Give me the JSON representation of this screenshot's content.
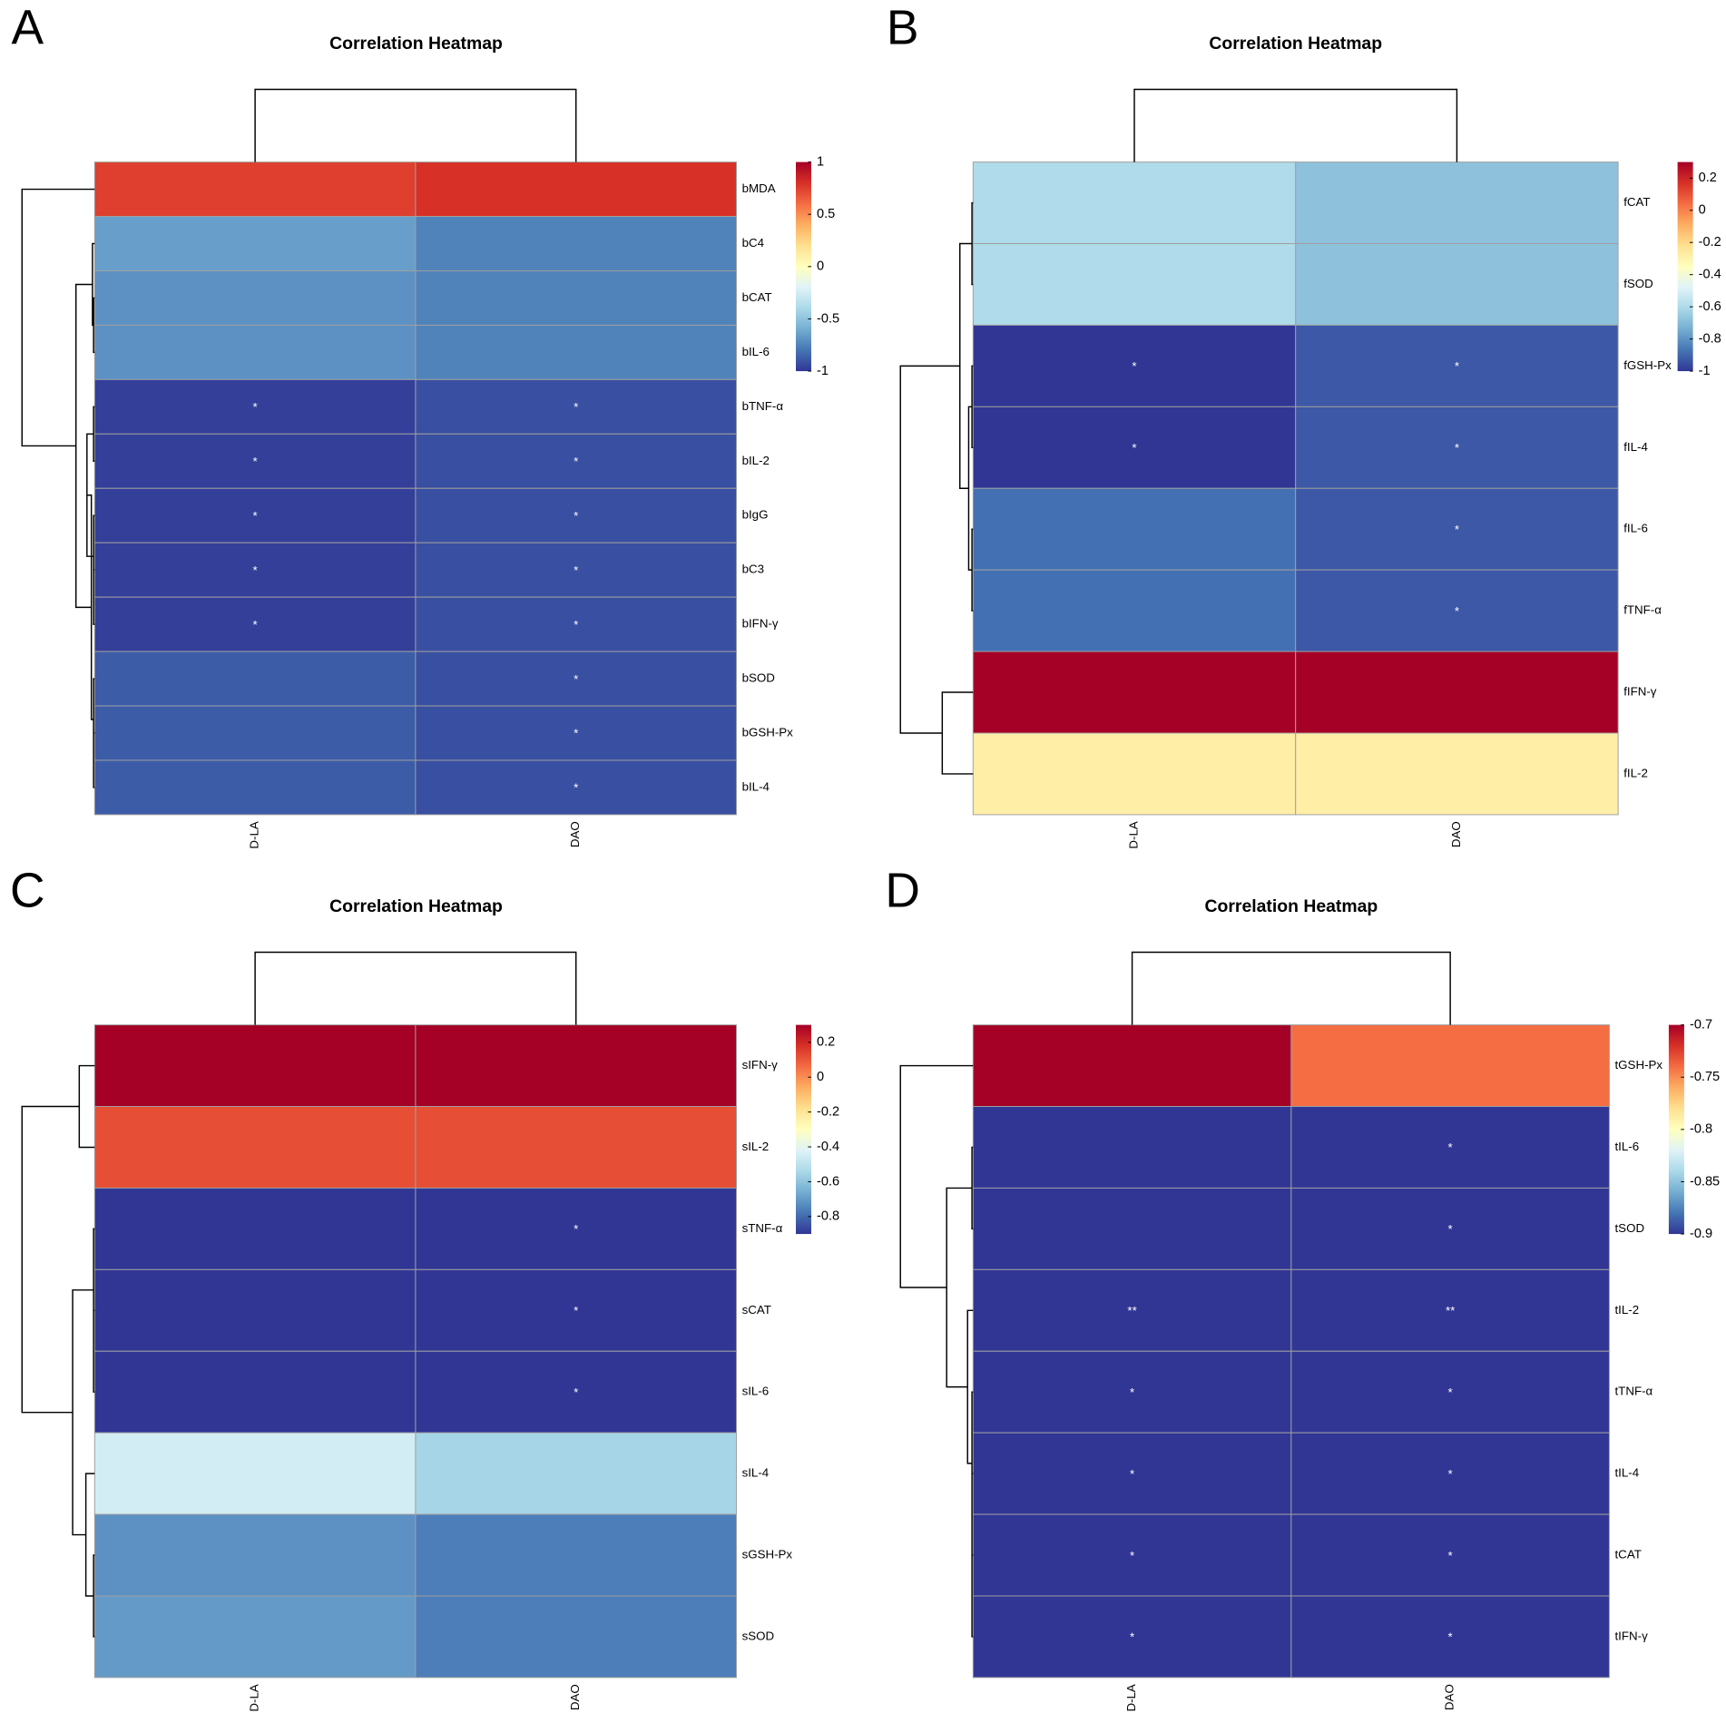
{
  "chart_data": [
    {
      "type": "heatmap",
      "panel": "A",
      "title": "Correlation Heatmap",
      "columns": [
        "D-LA",
        "DAO"
      ],
      "rows": [
        "bMDA",
        "bC4",
        "bCAT",
        "bIL-6",
        "bTNF-α",
        "bIL-2",
        "bIgG",
        "bC3",
        "bIFN-γ",
        "bSOD",
        "bGSH-Px",
        "bIL-4"
      ],
      "values": [
        [
          0.75,
          0.8
        ],
        [
          -0.65,
          -0.75
        ],
        [
          -0.7,
          -0.75
        ],
        [
          -0.7,
          -0.75
        ],
        [
          -0.97,
          -0.92
        ],
        [
          -0.97,
          -0.92
        ],
        [
          -0.97,
          -0.92
        ],
        [
          -0.97,
          -0.92
        ],
        [
          -0.97,
          -0.92
        ],
        [
          -0.88,
          -0.92
        ],
        [
          -0.88,
          -0.92
        ],
        [
          -0.88,
          -0.92
        ]
      ],
      "stars": [
        [
          null,
          null
        ],
        [
          null,
          null
        ],
        [
          null,
          null
        ],
        [
          null,
          null
        ],
        [
          "*",
          "*"
        ],
        [
          "*",
          "*"
        ],
        [
          "*",
          "*"
        ],
        [
          "*",
          "*"
        ],
        [
          "*",
          "*"
        ],
        [
          null,
          "*"
        ],
        [
          null,
          "*"
        ],
        [
          null,
          "*"
        ]
      ],
      "zlim": [
        -1,
        1
      ],
      "zticks": [
        1,
        0.5,
        0,
        -0.5,
        -1
      ],
      "colors": [
        "#313695",
        "#4575b4",
        "#74add1",
        "#abd9e9",
        "#e0f3f8",
        "#ffffbf",
        "#fee090",
        "#fdae61",
        "#f46d43",
        "#d73027",
        "#a50026"
      ]
    },
    {
      "type": "heatmap",
      "panel": "B",
      "title": "Correlation Heatmap",
      "columns": [
        "D-LA",
        "DAO"
      ],
      "rows": [
        "fCAT",
        "fSOD",
        "fGSH-Px",
        "fIL-4",
        "fIL-6",
        "fTNF-α",
        "fIFN-γ",
        "fIL-2"
      ],
      "values": [
        [
          -0.6,
          -0.68
        ],
        [
          -0.6,
          -0.68
        ],
        [
          -1,
          -0.93
        ],
        [
          -1,
          -0.93
        ],
        [
          -0.88,
          -0.93
        ],
        [
          -0.88,
          -0.93
        ],
        [
          0.3,
          0.3
        ],
        [
          -0.28,
          -0.28
        ]
      ],
      "stars": [
        [
          null,
          null
        ],
        [
          null,
          null
        ],
        [
          "*",
          "*"
        ],
        [
          "*",
          "*"
        ],
        [
          null,
          "*"
        ],
        [
          null,
          "*"
        ],
        [
          null,
          null
        ],
        [
          null,
          null
        ]
      ],
      "zlim": [
        -1,
        0.3
      ],
      "zticks": [
        0.2,
        0,
        -0.2,
        -0.4,
        -0.6,
        -0.8,
        -1
      ],
      "colors": [
        "#313695",
        "#4575b4",
        "#74add1",
        "#abd9e9",
        "#e0f3f8",
        "#ffffbf",
        "#fee090",
        "#fdae61",
        "#f46d43",
        "#d73027",
        "#a50026"
      ]
    },
    {
      "type": "heatmap",
      "panel": "C",
      "title": "Correlation Heatmap",
      "columns": [
        "D-LA",
        "DAO"
      ],
      "rows": [
        "sIFN-γ",
        "sIL-2",
        "sTNF-α",
        "sCAT",
        "sIL-6",
        "sIL-4",
        "sGSH-Px",
        "sSOD"
      ],
      "values": [
        [
          0.3,
          0.3
        ],
        [
          0.12,
          0.12
        ],
        [
          -0.9,
          -0.9
        ],
        [
          -0.9,
          -0.9
        ],
        [
          -0.9,
          -0.9
        ],
        [
          -0.45,
          -0.55
        ],
        [
          -0.72,
          -0.76
        ],
        [
          -0.7,
          -0.76
        ]
      ],
      "stars": [
        [
          null,
          null
        ],
        [
          null,
          null
        ],
        [
          null,
          "*"
        ],
        [
          null,
          "*"
        ],
        [
          null,
          "*"
        ],
        [
          null,
          null
        ],
        [
          null,
          null
        ],
        [
          null,
          null
        ]
      ],
      "zlim": [
        -0.9,
        0.3
      ],
      "zticks": [
        0.2,
        0,
        -0.2,
        -0.4,
        -0.6,
        -0.8
      ],
      "colors": [
        "#313695",
        "#4575b4",
        "#74add1",
        "#abd9e9",
        "#e0f3f8",
        "#ffffbf",
        "#fee090",
        "#fdae61",
        "#f46d43",
        "#d73027",
        "#a50026"
      ]
    },
    {
      "type": "heatmap",
      "panel": "D",
      "title": "Correlation Heatmap",
      "columns": [
        "D-LA",
        "DAO"
      ],
      "rows": [
        "tGSH-Px",
        "tIL-6",
        "tSOD",
        "tIL-2",
        "tTNF-α",
        "tIL-4",
        "tCAT",
        "tIFN-γ"
      ],
      "values": [
        [
          -0.7,
          -0.74
        ],
        [
          -0.9,
          -0.9
        ],
        [
          -0.9,
          -0.9
        ],
        [
          -0.9,
          -0.9
        ],
        [
          -0.9,
          -0.9
        ],
        [
          -0.9,
          -0.9
        ],
        [
          -0.9,
          -0.9
        ],
        [
          -0.9,
          -0.9
        ]
      ],
      "stars": [
        [
          null,
          null
        ],
        [
          null,
          "*"
        ],
        [
          null,
          "*"
        ],
        [
          "**",
          "**"
        ],
        [
          "*",
          "*"
        ],
        [
          "*",
          "*"
        ],
        [
          "*",
          "*"
        ],
        [
          "*",
          "*"
        ]
      ],
      "zlim": [
        -0.9,
        -0.7
      ],
      "zticks": [
        -0.7,
        -0.75,
        -0.8,
        -0.85,
        -0.9
      ],
      "colors": [
        "#313695",
        "#4575b4",
        "#74add1",
        "#abd9e9",
        "#e0f3f8",
        "#ffffbf",
        "#fee090",
        "#fdae61",
        "#f46d43",
        "#d73027",
        "#a50026"
      ]
    }
  ]
}
